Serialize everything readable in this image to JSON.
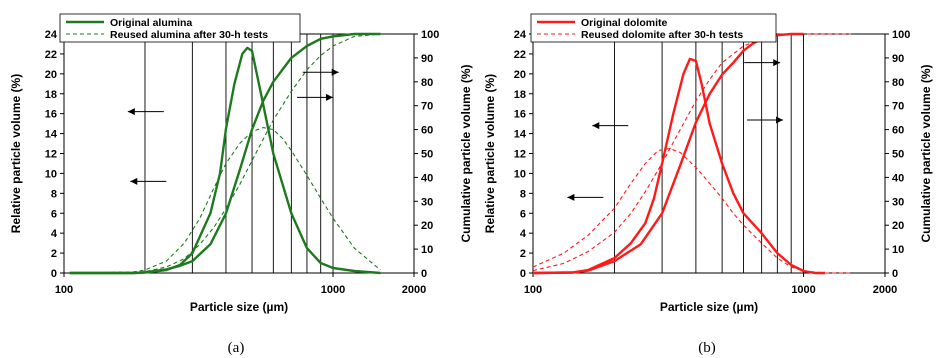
{
  "chart_data": [
    {
      "type": "line",
      "panel": "(a)",
      "xlabel": "Particle size (µm)",
      "ylabel_left": "Relative particle volume (%)",
      "ylabel_right": "Cumulative particle volume (%)",
      "xscale": "log",
      "xlim": [
        100,
        2000
      ],
      "xticks": [
        100,
        1000,
        2000
      ],
      "ylim_left": [
        0,
        24
      ],
      "yticks_left": [
        0,
        2,
        4,
        6,
        8,
        10,
        12,
        14,
        16,
        18,
        20,
        22,
        24
      ],
      "ylim_right": [
        0,
        100
      ],
      "yticks_right": [
        0,
        10,
        20,
        30,
        40,
        50,
        60,
        70,
        80,
        90,
        100
      ],
      "vertical_gridlines": [
        200,
        300,
        400,
        500,
        600,
        700,
        800,
        900,
        1000
      ],
      "legend_placement": "top-left",
      "color": "#1e7a1e",
      "series": [
        {
          "name": "Original alumina",
          "style": "solid",
          "relative_x": [
            105,
            180,
            200,
            240,
            270,
            300,
            350,
            380,
            400,
            430,
            460,
            480,
            500,
            540,
            600,
            700,
            800,
            900,
            1000,
            1200,
            1500
          ],
          "relative_y": [
            0,
            0,
            0.05,
            0.3,
            0.8,
            2,
            6,
            10,
            14.5,
            19,
            22,
            22.6,
            22.3,
            18,
            12,
            6,
            2.5,
            1,
            0.5,
            0.2,
            0
          ],
          "cumulative_x": [
            105,
            180,
            200,
            240,
            270,
            300,
            350,
            400,
            450,
            500,
            550,
            600,
            700,
            800,
            900,
            1000,
            1200,
            1500
          ],
          "cumulative_y": [
            0,
            0,
            0.3,
            1.5,
            3,
            5,
            12,
            25,
            43,
            60,
            72,
            80,
            90,
            95,
            98,
            99,
            100,
            100
          ]
        },
        {
          "name": "Reused alumina after 30-h tests",
          "style": "dashed",
          "relative_x": [
            105,
            180,
            200,
            240,
            280,
            320,
            360,
            400,
            450,
            500,
            550,
            600,
            650,
            700,
            800,
            900,
            1000,
            1200,
            1500
          ],
          "relative_y": [
            0,
            0.1,
            0.3,
            1.2,
            3,
            5.5,
            8.5,
            11,
            13,
            14.2,
            14.6,
            14.4,
            13.5,
            12.3,
            9.8,
            7.5,
            5.5,
            2.5,
            0.3
          ],
          "cumulative_x": [
            105,
            180,
            200,
            240,
            280,
            320,
            360,
            400,
            450,
            500,
            550,
            600,
            700,
            800,
            900,
            1000,
            1200,
            1500
          ],
          "cumulative_y": [
            0,
            0.2,
            0.6,
            2.5,
            6,
            12,
            19,
            27,
            37,
            47,
            56,
            64,
            76,
            85,
            91,
            95,
            99,
            100
          ]
        }
      ],
      "annotations": [
        {
          "text": "←",
          "points_to": "left axis",
          "x": 235,
          "y": 16.2
        },
        {
          "text": "←",
          "points_to": "left axis",
          "x": 240,
          "y": 9.2
        },
        {
          "text": "→",
          "points_to": "right axis",
          "x": 1050,
          "y": 84
        },
        {
          "text": "→",
          "points_to": "right axis",
          "x": 1000,
          "y": 73.5
        }
      ]
    },
    {
      "type": "line",
      "panel": "(b)",
      "xlabel": "Particle size (µm)",
      "ylabel_left": "Relative particle volume (%)",
      "ylabel_right": "Cumulative particle volume (%)",
      "xscale": "log",
      "xlim": [
        100,
        2000
      ],
      "xticks": [
        100,
        1000,
        2000
      ],
      "ylim_left": [
        0,
        24
      ],
      "yticks_left": [
        0,
        2,
        4,
        6,
        8,
        10,
        12,
        14,
        16,
        18,
        20,
        22,
        24
      ],
      "ylim_right": [
        0,
        100
      ],
      "yticks_right": [
        0,
        10,
        20,
        30,
        40,
        50,
        60,
        70,
        80,
        90,
        100
      ],
      "vertical_gridlines": [
        200,
        300,
        400,
        500,
        600,
        700,
        800,
        900,
        1000
      ],
      "legend_placement": "top-left",
      "color": "#ff1a1a",
      "series": [
        {
          "name": "Original dolomite",
          "style": "solid",
          "relative_x": [
            100,
            140,
            160,
            200,
            230,
            260,
            280,
            300,
            330,
            360,
            380,
            400,
            420,
            450,
            500,
            550,
            600,
            700,
            800,
            900,
            1000,
            1100,
            1200
          ],
          "relative_y": [
            0,
            0.05,
            0.3,
            1.5,
            3,
            5,
            7.5,
            11,
            16,
            20,
            21.5,
            21.3,
            19,
            15,
            11,
            8,
            6,
            4,
            2,
            0.8,
            0.2,
            0,
            0
          ],
          "cumulative_x": [
            100,
            140,
            160,
            200,
            250,
            300,
            350,
            400,
            450,
            500,
            550,
            600,
            650,
            700,
            800,
            900,
            1000
          ],
          "cumulative_y": [
            0,
            0.2,
            1,
            5,
            12,
            25,
            45,
            63,
            75,
            83,
            88,
            93,
            96,
            98,
            99.5,
            100,
            100
          ]
        },
        {
          "name": "Reused dolomite after 30-h tests",
          "style": "dashed",
          "relative_x": [
            100,
            130,
            160,
            200,
            230,
            260,
            290,
            320,
            350,
            400,
            450,
            500,
            550,
            600,
            700,
            800,
            900,
            1000,
            1200,
            1500
          ],
          "relative_y": [
            0.6,
            2,
            3.8,
            6.5,
            9,
            11,
            12.3,
            12.5,
            12.1,
            10.6,
            9,
            7.5,
            6,
            4.8,
            3,
            1.5,
            0.6,
            0.2,
            0,
            0
          ],
          "cumulative_x": [
            100,
            130,
            160,
            200,
            230,
            260,
            300,
            350,
            400,
            450,
            500,
            600,
            700,
            800,
            900,
            1000,
            1200,
            1500
          ],
          "cumulative_y": [
            1,
            4,
            9,
            17,
            25,
            34,
            46,
            60,
            72,
            81,
            88,
            95,
            98,
            99.5,
            100,
            100,
            100,
            100
          ]
        }
      ],
      "annotations": [
        {
          "text": "←",
          "points_to": "left axis",
          "x": 225,
          "y": 14.8
        },
        {
          "text": "←",
          "points_to": "left axis",
          "x": 182,
          "y": 7.6
        },
        {
          "text": "→",
          "points_to": "right axis",
          "x": 820,
          "y": 88
        },
        {
          "text": "→",
          "points_to": "right axis",
          "x": 840,
          "y": 64
        }
      ]
    }
  ],
  "captions": [
    "(a)",
    "(b)"
  ]
}
